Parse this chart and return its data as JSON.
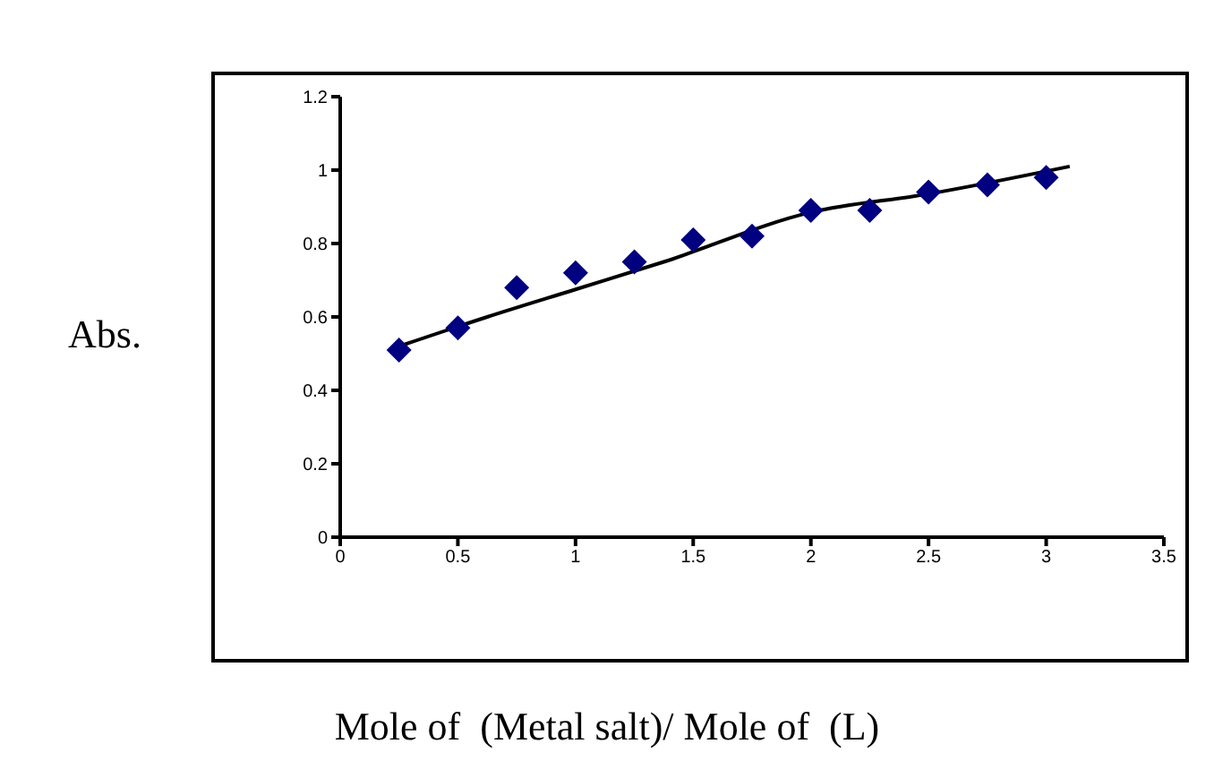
{
  "chart_data": {
    "type": "scatter",
    "xlabel": "Mole of  (Metal salt)/ Mole of  (L)",
    "ylabel": "Abs.",
    "x": [
      0.25,
      0.5,
      0.75,
      1,
      1.25,
      1.5,
      1.75,
      2,
      2.25,
      2.5,
      2.75,
      3
    ],
    "series": [
      {
        "color": "#000080",
        "marker": "diamond",
        "values": [
          0.51,
          0.57,
          0.68,
          0.72,
          0.75,
          0.81,
          0.82,
          0.89,
          0.89,
          0.94,
          0.96,
          0.98
        ]
      },
      {
        "type": "line",
        "color": "#000000",
        "marker": "none",
        "line_style": "solid",
        "x": [
          0.25,
          0.625,
          1,
          1.375,
          2,
          2.5,
          3.1
        ],
        "values": [
          0.52,
          0.6,
          0.675,
          0.75,
          0.885,
          0.935,
          1.01
        ]
      }
    ],
    "xlim": [
      0,
      3.5
    ],
    "xticks": [
      0,
      0.5,
      1,
      1.5,
      2,
      2.5,
      3,
      3.5
    ],
    "ylim": [
      0,
      1.2
    ],
    "yticks": [
      0,
      0.2,
      0.4,
      0.6,
      0.8,
      1,
      1.2
    ],
    "grid": false,
    "legend": false
  }
}
